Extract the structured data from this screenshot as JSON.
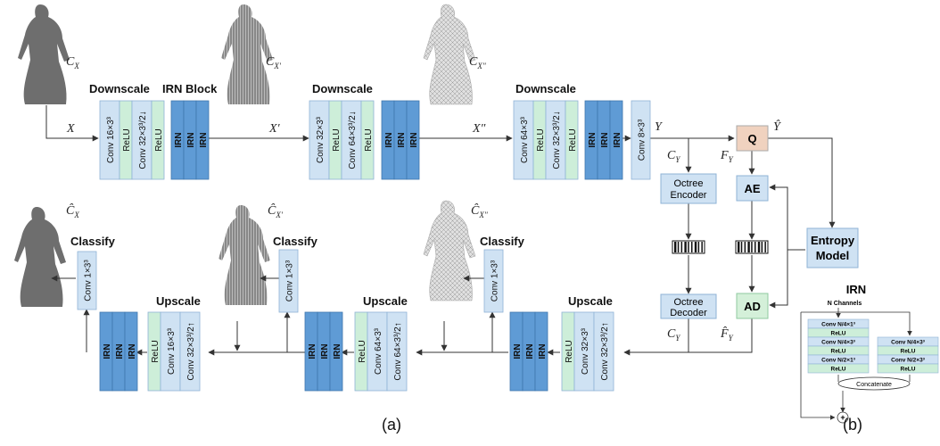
{
  "figure_labels": {
    "a": "(a)",
    "b": "(b)"
  },
  "colors": {
    "conv": "#cfe2f3",
    "relu": "#cdeed9",
    "irn": "#5f9bd5",
    "q": "#f0d2bf",
    "ae_ad": "#cfe2f3",
    "line": "#333333"
  },
  "encoder": {
    "stage1": {
      "heading": "Downscale",
      "blocks": [
        "Conv 16×3³",
        "ReLU",
        "Conv 32×3³/2↓",
        "ReLU"
      ],
      "irn_heading": "IRN Block",
      "irn": [
        "IRN",
        "IRN",
        "IRN"
      ]
    },
    "stage2": {
      "heading": "Downscale",
      "blocks": [
        "Conv 32×3³",
        "ReLU",
        "Conv 64×3³/2↓",
        "ReLU"
      ],
      "irn": [
        "IRN",
        "IRN",
        "IRN"
      ]
    },
    "stage3": {
      "heading": "Downscale",
      "blocks": [
        "Conv 64×3³",
        "ReLU",
        "Conv 32×3³/2↓",
        "ReLU"
      ],
      "irn": [
        "IRN",
        "IRN",
        "IRN"
      ],
      "final_conv": "Conv 8×3³"
    },
    "inputs": [
      "X",
      "X′",
      "X″",
      "Y"
    ],
    "cloud_labels": [
      "C_X",
      "C_X'",
      "C_X''"
    ]
  },
  "entropy": {
    "q": "Q",
    "y_hat": "Ŷ",
    "ae": "AE",
    "ad": "AD",
    "model": [
      "Entropy",
      "Model"
    ],
    "octree_encoder": [
      "Octree",
      "Encoder"
    ],
    "octree_decoder": [
      "Octree",
      "Decoder"
    ],
    "c_y": "C_Y",
    "f_y": "F_Y",
    "f_y_hat": "F̂_Y",
    "c_y_out": "C_Y"
  },
  "decoder": {
    "stage1": {
      "heading": "Upscale",
      "blocks": [
        "ReLU",
        "Conv 32×3³",
        "Conv 32×3³/2↑"
      ],
      "irn": [
        "IRN",
        "IRN",
        "IRN"
      ],
      "classify_heading": "Classify",
      "classify_conv": "Conv 1×3³"
    },
    "stage2": {
      "heading": "Upscale",
      "blocks": [
        "ReLU",
        "Conv 64×3³",
        "Conv 64×3³/2↑"
      ],
      "irn": [
        "IRN",
        "IRN",
        "IRN"
      ],
      "classify_heading": "Classify",
      "classify_conv": "Conv 1×3³"
    },
    "stage3": {
      "heading": "Upscale",
      "blocks": [
        "ReLU",
        "Conv 16×3³",
        "Conv 32×3³/2↑"
      ],
      "irn": [
        "IRN",
        "IRN",
        "IRN"
      ],
      "classify_heading": "Classify",
      "classify_conv": "Conv 1×3³"
    },
    "cloud_labels": [
      "Ĉ_X''",
      "Ĉ_X'",
      "Ĉ_X"
    ]
  },
  "irn_panel": {
    "title": "IRN",
    "channels": "N Channels",
    "left": [
      "Conv N/4×1³",
      "ReLU",
      "Conv N/4×3³",
      "ReLU",
      "Conv N/2×1³",
      "ReLU"
    ],
    "right": [
      "Conv N/4×3³",
      "ReLU",
      "Conv N/2×3³",
      "ReLU"
    ],
    "concat": "Concatenate",
    "plus": "+"
  }
}
